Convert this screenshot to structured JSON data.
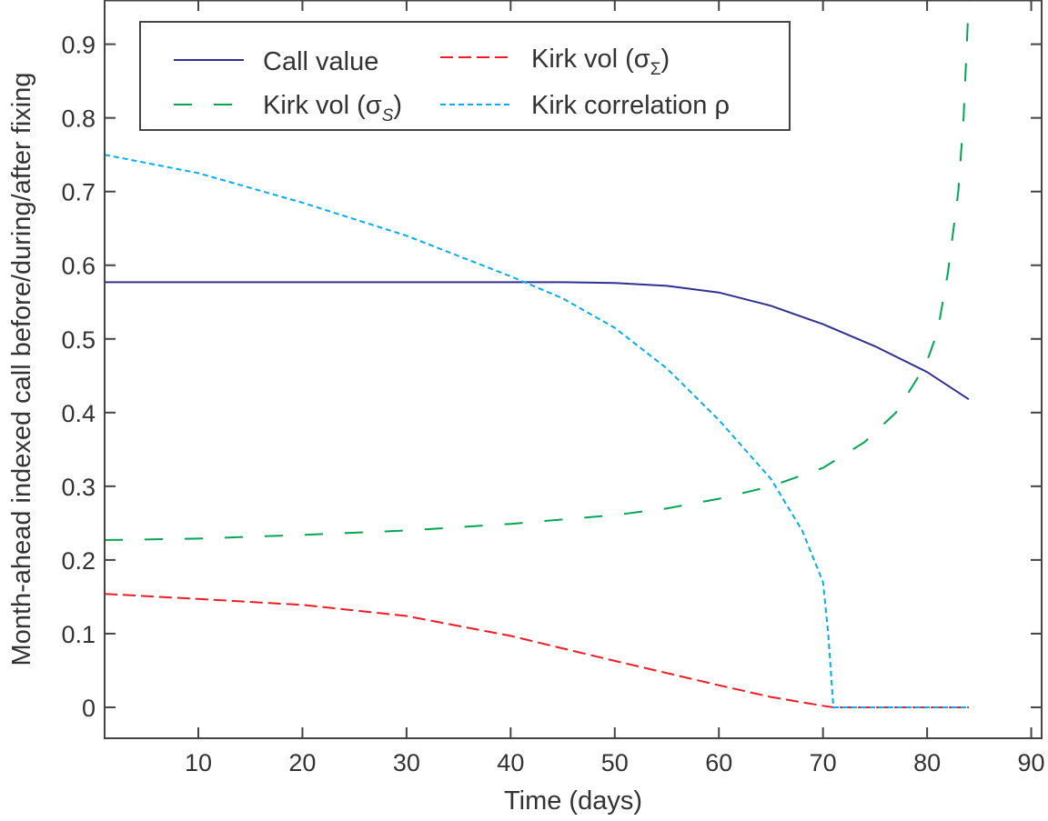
{
  "chart_data": {
    "type": "line",
    "title": "",
    "xlabel": "Time (days)",
    "ylabel": "Month-ahead indexed call before/during/after fixing",
    "xlim": [
      1,
      91
    ],
    "ylim": [
      -0.042,
      0.96
    ],
    "xticks": [
      10,
      20,
      30,
      40,
      50,
      60,
      70,
      80,
      90
    ],
    "xtick_labels": [
      "10",
      "20",
      "30",
      "40",
      "50",
      "60",
      "70",
      "80",
      "90"
    ],
    "yticks": [
      0,
      0.1,
      0.2,
      0.3,
      0.4,
      0.5,
      0.6,
      0.7,
      0.8,
      0.9
    ],
    "ytick_labels": [
      "0",
      "0.1",
      "0.2",
      "0.3",
      "0.4",
      "0.5",
      "0.6",
      "0.7",
      "0.8",
      "0.9"
    ],
    "grid": false,
    "legend_position": "top-left",
    "series": [
      {
        "name": "Call value",
        "legend_text": "Call value",
        "color": "#2e3192",
        "dash": "solid",
        "x": [
          1,
          10,
          20,
          30,
          40,
          45,
          50,
          55,
          60,
          65,
          70,
          75,
          80,
          84
        ],
        "y": [
          0.577,
          0.577,
          0.577,
          0.577,
          0.577,
          0.577,
          0.576,
          0.572,
          0.563,
          0.545,
          0.52,
          0.49,
          0.455,
          0.418
        ]
      },
      {
        "name": "Kirk vol (sigma_Sigma)",
        "legend_text": "Kirk vol (σ",
        "legend_sub": "Σ",
        "color": "#ed1c24",
        "dash": "long",
        "x": [
          1,
          10,
          20,
          30,
          40,
          50,
          60,
          65,
          70,
          71,
          84
        ],
        "y": [
          0.154,
          0.147,
          0.139,
          0.124,
          0.097,
          0.063,
          0.03,
          0.014,
          0.002,
          0,
          0
        ]
      },
      {
        "name": "Kirk vol (sigma_S)",
        "legend_text": "Kirk vol (σ",
        "legend_sub": "S",
        "color": "#00a651",
        "dash": "longgap",
        "x": [
          1,
          10,
          20,
          30,
          40,
          50,
          55,
          60,
          65,
          70,
          74,
          77,
          79,
          80,
          81,
          82,
          83,
          83.5,
          84
        ],
        "y": [
          0.227,
          0.229,
          0.234,
          0.24,
          0.249,
          0.261,
          0.27,
          0.283,
          0.3,
          0.325,
          0.36,
          0.4,
          0.445,
          0.47,
          0.51,
          0.59,
          0.7,
          0.8,
          0.96
        ]
      },
      {
        "name": "Kirk correlation rho",
        "legend_text": "Kirk correlation ρ",
        "color": "#00aeef",
        "dash": "short",
        "x": [
          1,
          10,
          20,
          30,
          40,
          45,
          50,
          55,
          60,
          65,
          68,
          70,
          70.5,
          71,
          84
        ],
        "y": [
          0.75,
          0.725,
          0.685,
          0.64,
          0.585,
          0.555,
          0.515,
          0.46,
          0.39,
          0.31,
          0.24,
          0.17,
          0.1,
          0,
          0
        ]
      }
    ]
  }
}
